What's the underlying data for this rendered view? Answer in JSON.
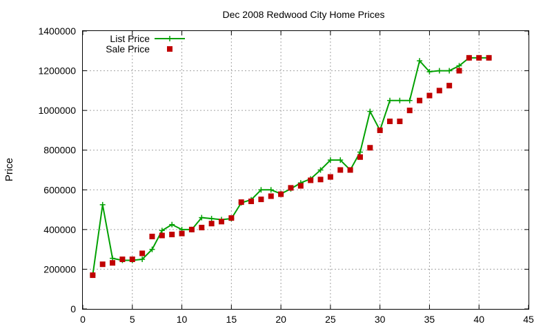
{
  "chart_data": {
    "type": "line",
    "title": "Dec 2008 Redwood City Home Prices",
    "xlabel": "",
    "ylabel": "Price",
    "xlim": [
      0,
      45
    ],
    "ylim": [
      0,
      1400000
    ],
    "xticks": [
      0,
      5,
      10,
      15,
      20,
      25,
      30,
      35,
      40,
      45
    ],
    "yticks": [
      0,
      200000,
      400000,
      600000,
      800000,
      1000000,
      1200000,
      1400000
    ],
    "grid": true,
    "legend_position": "top-left",
    "series": [
      {
        "name": "List Price",
        "style": "line-plus",
        "color": "#00a000",
        "x": [
          1,
          2,
          3,
          4,
          5,
          6,
          7,
          8,
          9,
          10,
          11,
          12,
          13,
          14,
          15,
          16,
          17,
          18,
          19,
          20,
          21,
          22,
          23,
          24,
          25,
          26,
          27,
          28,
          29,
          30,
          31,
          32,
          33,
          34,
          35,
          36,
          37,
          38,
          39,
          40,
          41
        ],
        "y": [
          170000,
          525000,
          255000,
          245000,
          245000,
          250000,
          300000,
          395000,
          425000,
          400000,
          400000,
          460000,
          455000,
          450000,
          455000,
          535000,
          550000,
          600000,
          600000,
          580000,
          605000,
          635000,
          655000,
          700000,
          750000,
          750000,
          700000,
          790000,
          995000,
          900000,
          1050000,
          1050000,
          1050000,
          1250000,
          1195000,
          1200000,
          1200000,
          1225000,
          1265000,
          1265000,
          1265000
        ]
      },
      {
        "name": "Sale Price",
        "style": "points-square",
        "color": "#c00000",
        "x": [
          1,
          2,
          3,
          4,
          5,
          6,
          7,
          8,
          9,
          10,
          11,
          12,
          13,
          14,
          15,
          16,
          17,
          18,
          19,
          20,
          21,
          22,
          23,
          24,
          25,
          26,
          27,
          28,
          29,
          30,
          31,
          32,
          33,
          34,
          35,
          36,
          37,
          38,
          39,
          40,
          41
        ],
        "y": [
          170000,
          225000,
          232000,
          250000,
          250000,
          280000,
          365000,
          370000,
          375000,
          380000,
          400000,
          410000,
          430000,
          440000,
          458000,
          538000,
          542000,
          552000,
          568000,
          578000,
          610000,
          620000,
          648000,
          652000,
          665000,
          700000,
          700000,
          765000,
          812000,
          900000,
          945000,
          945000,
          1000000,
          1050000,
          1075000,
          1100000,
          1125000,
          1200000,
          1265000,
          1265000,
          1265000
        ]
      }
    ]
  }
}
